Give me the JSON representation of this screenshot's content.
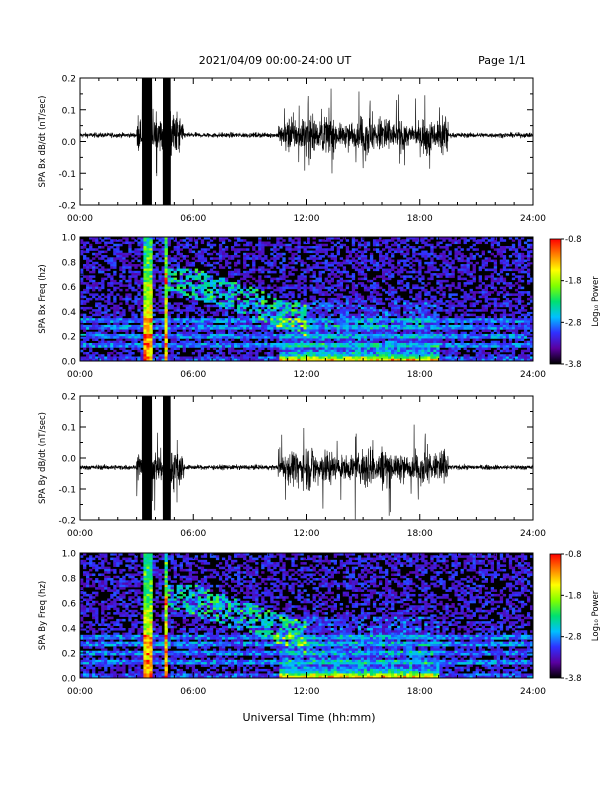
{
  "header": {
    "title": "2021/04/09  00:00-24:00 UT",
    "page": "Page 1/1"
  },
  "x_axis": {
    "label": "Universal Time (hh:mm)",
    "ticks": [
      "00:00",
      "06:00",
      "12:00",
      "18:00",
      "24:00"
    ],
    "range_hours": [
      0,
      24
    ]
  },
  "colorbar": {
    "label": "Log₁₀ Power",
    "ticks": [
      "-0.8",
      "-1.8",
      "-2.8",
      "-3.8"
    ],
    "range": [
      -3.8,
      -0.8
    ],
    "colors": [
      "#000000",
      "#5a00a0",
      "#3030ff",
      "#00c0ff",
      "#00e070",
      "#80ff00",
      "#ffff00",
      "#ff8000",
      "#ff0000"
    ]
  },
  "chart_data": [
    {
      "type": "line",
      "panel": "bx-waveform",
      "ylabel": "SPA Bx dB/dt (nT/sec)",
      "ylim": [
        -0.2,
        0.2
      ],
      "yticks": [
        "0.2",
        "0.1",
        "0.0",
        "-0.1",
        "-0.2"
      ],
      "xlim": [
        0,
        24
      ],
      "x_unit": "hours UT",
      "baseline": 0.02,
      "quiet_amplitude": 0.01,
      "saturated_intervals_hours": [
        [
          3.3,
          3.8
        ],
        [
          4.4,
          4.8
        ]
      ],
      "active_intervals_hours": [
        [
          3.0,
          5.5
        ],
        [
          10.5,
          19.5
        ]
      ],
      "peak_amplitude": 0.2,
      "line_color": "#000000"
    },
    {
      "type": "heatmap",
      "panel": "bx-spectrogram",
      "ylabel": "SPA Bx Freq (hz)",
      "ylim": [
        0.0,
        1.0
      ],
      "yticks": [
        "1.0",
        "0.8",
        "0.6",
        "0.4",
        "0.2",
        "0.0"
      ],
      "xlim": [
        0,
        24
      ],
      "zlim": [
        -3.8,
        -0.8
      ],
      "bright_bands_hours": [
        [
          3.4,
          3.8
        ],
        [
          4.4,
          4.7
        ]
      ],
      "low_frequency_activity_hours": [
        [
          10.5,
          19.0
        ]
      ],
      "harmonic_lines_hz": [
        0.13,
        0.2,
        0.27,
        0.33
      ]
    },
    {
      "type": "line",
      "panel": "by-waveform",
      "ylabel": "SPA By dB/dt (nT/sec)",
      "ylim": [
        -0.2,
        0.2
      ],
      "yticks": [
        "0.2",
        "0.1",
        "0.0",
        "-0.1",
        "-0.2"
      ],
      "xlim": [
        0,
        24
      ],
      "x_unit": "hours UT",
      "baseline": -0.03,
      "quiet_amplitude": 0.01,
      "saturated_intervals_hours": [
        [
          3.3,
          3.8
        ],
        [
          4.4,
          4.8
        ]
      ],
      "active_intervals_hours": [
        [
          3.0,
          5.5
        ],
        [
          10.5,
          19.5
        ]
      ],
      "peak_amplitude": 0.2,
      "line_color": "#000000"
    },
    {
      "type": "heatmap",
      "panel": "by-spectrogram",
      "ylabel": "SPA By Freq (hz)",
      "ylim": [
        0.0,
        1.0
      ],
      "yticks": [
        "1.0",
        "0.8",
        "0.6",
        "0.4",
        "0.2",
        "0.0"
      ],
      "xlim": [
        0,
        24
      ],
      "zlim": [
        -3.8,
        -0.8
      ],
      "bright_bands_hours": [
        [
          3.4,
          3.8
        ],
        [
          4.4,
          4.7
        ]
      ],
      "low_frequency_activity_hours": [
        [
          10.5,
          19.0
        ]
      ],
      "harmonic_lines_hz": [
        0.13,
        0.2,
        0.27,
        0.33
      ]
    }
  ]
}
